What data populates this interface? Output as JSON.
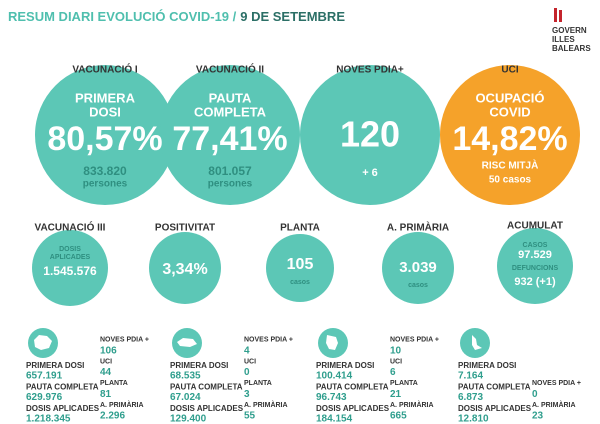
{
  "header": {
    "title": "RESUM DIARI EVOLUCIÓ COVID-19 /",
    "date": "9 DE SETEMBRE",
    "logo": [
      "GOVERN",
      "ILLES",
      "BALEARS"
    ]
  },
  "main": [
    {
      "label": "VACUNACIÓ I",
      "heading": [
        "PRIMERA",
        "DOSI"
      ],
      "value": "80,57%",
      "count": "833.820",
      "unit": "persones"
    },
    {
      "label": "VACUNACIÓ II",
      "heading": [
        "PAUTA",
        "COMPLETA"
      ],
      "value": "77,41%",
      "count": "801.057",
      "unit": "persones"
    },
    {
      "label": "NOVES PDIA+",
      "value": "120",
      "change": "+ 6"
    },
    {
      "label": "UCI",
      "heading": [
        "OCUPACIÓ",
        "COVID"
      ],
      "value": "14,82%",
      "risk": "RISC MITJÀ",
      "cases": "50 casos"
    }
  ],
  "secondary": [
    {
      "label": "VACUNACIÓ III",
      "heading": [
        "DOSIS",
        "APLICADES"
      ],
      "value": "1.545.576"
    },
    {
      "label": "POSITIVITAT",
      "value": "3,34%"
    },
    {
      "label": "PLANTA",
      "value": "105",
      "unit": "casos"
    },
    {
      "label": "A. PRIMÀRIA",
      "value": "3.039",
      "unit": "casos"
    },
    {
      "label": "ACUMULAT",
      "cases_label": "CASOS",
      "cases": "97.529",
      "deaths_label": "DEFUNCIONS",
      "deaths": "932 (+1)"
    }
  ],
  "islands": [
    {
      "vaccination": [
        [
          "PRIMERA DOSI",
          "657.191"
        ],
        [
          "PAUTA COMPLETA",
          "629.976"
        ],
        [
          "DOSIS APLICADES",
          "1.218.345"
        ]
      ],
      "cases": [
        [
          "NOVES PDIA +",
          "106"
        ],
        [
          "UCI",
          "44"
        ],
        [
          "PLANTA",
          "81"
        ],
        [
          "A. PRIMÀRIA",
          "2.296"
        ]
      ]
    },
    {
      "vaccination": [
        [
          "PRIMERA DOSI",
          "68.535"
        ],
        [
          "PAUTA COMPLETA",
          "67.024"
        ],
        [
          "DOSIS APLICADES",
          "129.400"
        ]
      ],
      "cases": [
        [
          "NOVES PDIA +",
          "4"
        ],
        [
          "UCI",
          "0"
        ],
        [
          "PLANTA",
          "3"
        ],
        [
          "A. PRIMÀRIA",
          "55"
        ]
      ]
    },
    {
      "vaccination": [
        [
          "PRIMERA DOSI",
          "100.414"
        ],
        [
          "PAUTA COMPLETA",
          "96.743"
        ],
        [
          "DOSIS APLICADES",
          "184.154"
        ]
      ],
      "cases": [
        [
          "NOVES PDIA +",
          "10"
        ],
        [
          "UCI",
          "6"
        ],
        [
          "PLANTA",
          "21"
        ],
        [
          "A. PRIMÀRIA",
          "665"
        ]
      ]
    },
    {
      "vaccination": [
        [
          "PRIMERA DOSI",
          "7.164"
        ],
        [
          "PAUTA COMPLETA",
          "6.873"
        ],
        [
          "DOSIS APLICADES",
          "12.810"
        ]
      ],
      "cases": [
        [
          "NOVES PDIA +",
          "0"
        ],
        [
          "A. PRIMÀRIA",
          "23"
        ]
      ]
    }
  ]
}
